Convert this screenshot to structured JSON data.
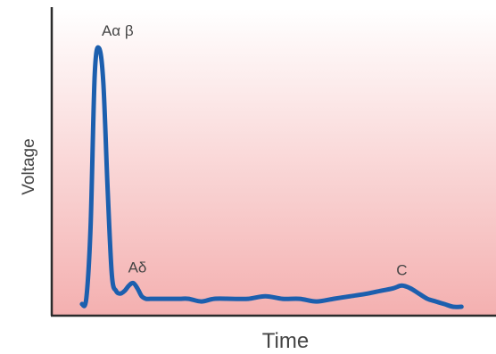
{
  "chart_data": {
    "type": "line",
    "title": "",
    "xlabel": "Time",
    "ylabel": "Voltage",
    "xlim": [
      0,
      100
    ],
    "ylim": [
      0,
      100
    ],
    "grid": false,
    "colors": {
      "trace": "#1c5fae",
      "background_top": "#ffffff",
      "background_bottom": "#f4b0b0",
      "axis": "#2b2b2b",
      "text": "#444444"
    },
    "series": [
      {
        "x": [
          5,
          6,
          7,
          8,
          9,
          10,
          11,
          12,
          13,
          14,
          15,
          16,
          17,
          18,
          19,
          20,
          21,
          22,
          24,
          26,
          28,
          30,
          33,
          36,
          40,
          44,
          48,
          52,
          56,
          60,
          64,
          68,
          72,
          75,
          78,
          80,
          82,
          84,
          86,
          88,
          90,
          92,
          94
        ],
        "y": [
          1,
          3,
          30,
          88,
          98,
          85,
          45,
          12,
          6,
          5,
          6,
          8,
          9,
          7,
          4,
          3,
          3,
          3,
          3,
          3,
          3,
          3,
          2,
          3,
          3,
          3,
          4,
          3,
          3,
          2,
          3,
          4,
          5,
          6,
          7,
          8,
          7,
          5,
          3,
          2,
          1,
          0,
          0
        ]
      }
    ],
    "annotations": [
      {
        "text": "Aα β",
        "x": 10,
        "y": 98
      },
      {
        "text": "Aδ",
        "x": 18,
        "y": 9
      },
      {
        "text": "C",
        "x": 80,
        "y": 8
      }
    ]
  }
}
